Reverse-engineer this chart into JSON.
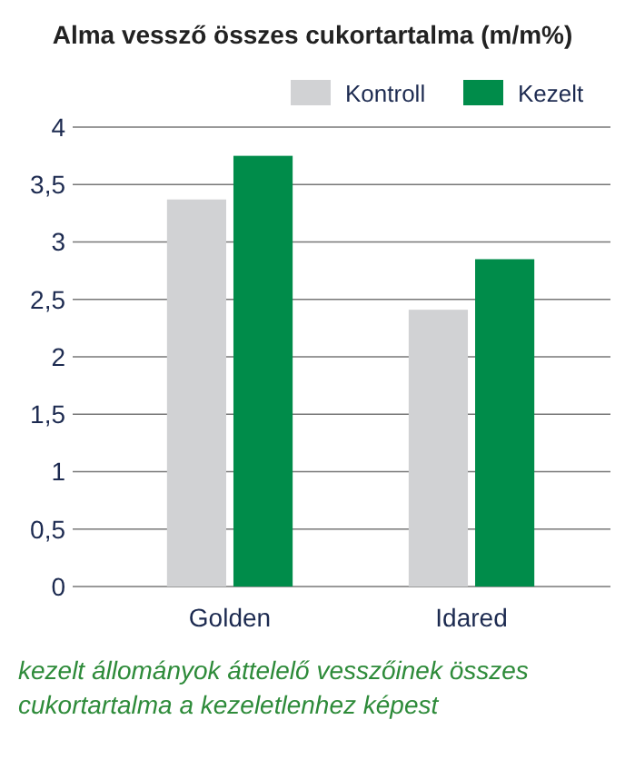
{
  "chart_data": {
    "type": "bar",
    "title": "Alma vessző összes cukortartalma (m/m%)",
    "categories": [
      "Golden",
      "Idared"
    ],
    "series": [
      {
        "name": "Kontroll",
        "color": "#d1d2d4",
        "values": [
          3.37,
          2.41
        ]
      },
      {
        "name": "Kezelt",
        "color": "#008c4a",
        "values": [
          3.75,
          2.85
        ]
      }
    ],
    "ylim": [
      0,
      4
    ],
    "yticks": [
      0,
      {
        "value": 0.5,
        "label": "0,5"
      },
      1,
      {
        "value": 1.5,
        "label": "1,5"
      },
      2,
      {
        "value": 2.5,
        "label": "2,5"
      },
      3,
      {
        "value": 3.5,
        "label": "3,5"
      },
      4
    ],
    "grid": "y",
    "legend": "top right",
    "annotations": [
      "kezelt állományok áttelelő vesszőinek összes cukortartalma a kezeletlenhez képest"
    ]
  }
}
